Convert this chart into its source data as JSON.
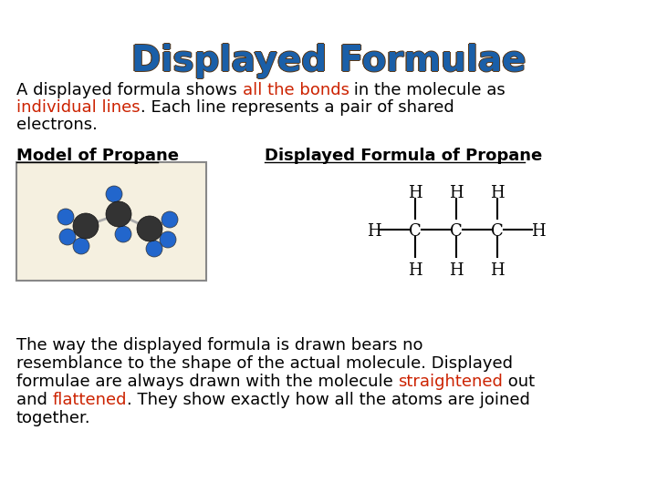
{
  "title": "Displayed Formulae",
  "title_color": "#1a5fa8",
  "title_shadow_color": "#5a3a1a",
  "background_color": "#ffffff",
  "para1_parts": [
    {
      "text": "A displayed formula shows ",
      "color": "#000000",
      "bold": false
    },
    {
      "text": "all the bonds",
      "color": "#cc2200",
      "bold": false
    },
    {
      "text": " in the molecule as\n",
      "color": "#000000",
      "bold": false
    },
    {
      "text": "individual lines",
      "color": "#cc2200",
      "bold": false
    },
    {
      "text": ". Each line represents a pair of shared\nelectrons.",
      "color": "#000000",
      "bold": false
    }
  ],
  "label_model": "Model of Propane",
  "label_formula": "Displayed Formula of Propane",
  "para2_parts": [
    {
      "text": "The way the displayed formula is drawn bears no\nresemblance to the shape of the actual molecule. Displayed\nformulae are always drawn with the molecule ",
      "color": "#000000"
    },
    {
      "text": "straightened",
      "color": "#cc2200"
    },
    {
      "text": " out\nand ",
      "color": "#000000"
    },
    {
      "text": "flattened",
      "color": "#cc2200"
    },
    {
      "text": ". They show exactly how all the atoms are joined\ntogether.",
      "color": "#000000"
    }
  ],
  "font_size_title": 28,
  "font_size_body": 13,
  "font_size_label": 13
}
